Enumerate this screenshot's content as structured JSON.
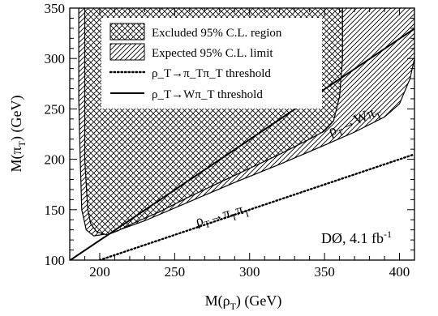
{
  "chart_data": {
    "type": "area",
    "xlabel": "M(ρ_T) (GeV)",
    "ylabel": "M(π_T) (GeV)",
    "xlim": [
      180,
      410
    ],
    "ylim": [
      100,
      350
    ],
    "x_ticks": [
      200,
      250,
      300,
      350,
      400
    ],
    "y_ticks": [
      100,
      150,
      200,
      250,
      300,
      350
    ],
    "grid": false,
    "legend_position": "top-left",
    "legend": [
      {
        "key": "excluded",
        "label": "Excluded 95% C.L. region"
      },
      {
        "key": "expected",
        "label": "Expected 95% C.L. limit"
      },
      {
        "key": "pipi",
        "label": "ρ_T→π_Tπ_T threshold"
      },
      {
        "key": "wpi",
        "label": "ρ_T→Wπ_T threshold"
      }
    ],
    "series": [
      {
        "name": "Excluded 95% C.L. region",
        "style": "cross-hatch",
        "boundary": [
          [
            190,
            350
          ],
          [
            190,
            260
          ],
          [
            190,
            200
          ],
          [
            192,
            150
          ],
          [
            194,
            136
          ],
          [
            198,
            128
          ],
          [
            205,
            125
          ],
          [
            212,
            129
          ],
          [
            220,
            135
          ],
          [
            240,
            148
          ],
          [
            260,
            163
          ],
          [
            280,
            177
          ],
          [
            300,
            191
          ],
          [
            320,
            205
          ],
          [
            340,
            220
          ],
          [
            350,
            228
          ],
          [
            356,
            238
          ],
          [
            360,
            262
          ],
          [
            362,
            300
          ],
          [
            362,
            350
          ]
        ]
      },
      {
        "name": "Expected 95% C.L. limit",
        "style": "diagonal-hatch",
        "boundary": [
          [
            186,
            350
          ],
          [
            186,
            260
          ],
          [
            187,
            200
          ],
          [
            188,
            150
          ],
          [
            191,
            130
          ],
          [
            196,
            124
          ],
          [
            205,
            126
          ],
          [
            215,
            131
          ],
          [
            230,
            139
          ],
          [
            260,
            158
          ],
          [
            290,
            177
          ],
          [
            320,
            195
          ],
          [
            350,
            214
          ],
          [
            370,
            227
          ],
          [
            390,
            242
          ],
          [
            400,
            255
          ],
          [
            407,
            280
          ],
          [
            410,
            300
          ]
        ]
      },
      {
        "name": "ρ_T→π_Tπ_T threshold",
        "style": "dotted",
        "x": [
          200,
          410
        ],
        "y": [
          100,
          205
        ]
      },
      {
        "name": "ρ_T→Wπ_T threshold",
        "style": "solid",
        "x": [
          180,
          410
        ],
        "y": [
          99.6,
          329.6
        ]
      }
    ],
    "annotations": [
      {
        "text_main": "ρ",
        "sub1": "T",
        "arrow": "→",
        "main2": "Wπ",
        "sub2": "T"
      },
      {
        "text_main": "ρ",
        "sub1": "T",
        "arrow": "→",
        "main2": "π",
        "sub2": "T",
        "main3": "π",
        "sub3": "T"
      },
      {
        "text": "DØ, 4.1 fb",
        "sup": "-1"
      }
    ]
  }
}
